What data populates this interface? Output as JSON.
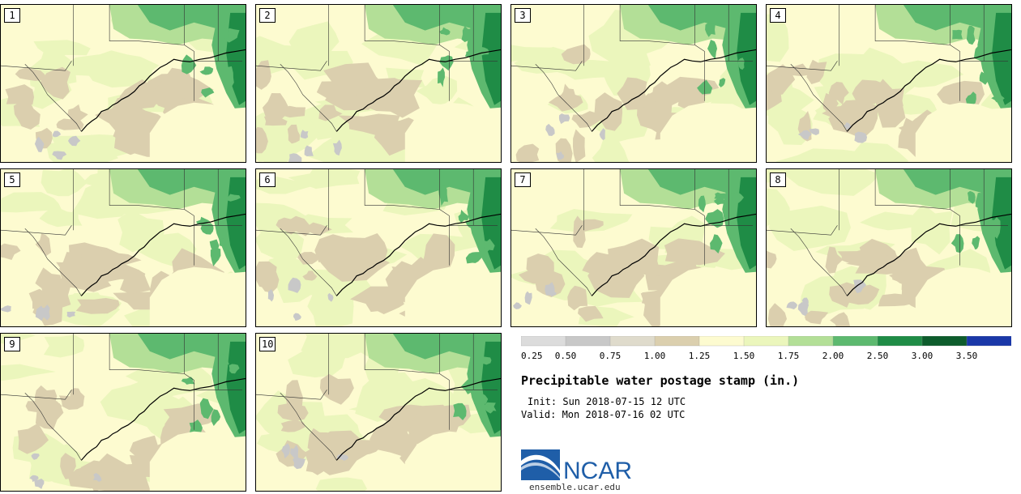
{
  "colors": {
    "base": "#fdfbd0",
    "bins": [
      "#dcdcdc",
      "#c8c8c8",
      "#dfdbcc",
      "#dbcfae",
      "#fdfbd0",
      "#ebf6bc",
      "#b3df97",
      "#5db96f",
      "#1f8c46",
      "#0d5c2c",
      "#1a38a8"
    ],
    "ncar_blue": "#1f5ea8"
  },
  "panels": [
    {
      "label": "1",
      "seed": 11
    },
    {
      "label": "2",
      "seed": 23
    },
    {
      "label": "3",
      "seed": 37
    },
    {
      "label": "4",
      "seed": 41
    },
    {
      "label": "5",
      "seed": 53
    },
    {
      "label": "6",
      "seed": 67
    },
    {
      "label": "7",
      "seed": 71
    },
    {
      "label": "8",
      "seed": 83
    },
    {
      "label": "9",
      "seed": 97
    },
    {
      "label": "10",
      "seed": 109
    }
  ],
  "legend": {
    "ticks": [
      "0.25",
      "0.50",
      "0.75",
      "1.00",
      "1.25",
      "1.50",
      "1.75",
      "2.00",
      "2.50",
      "3.00",
      "3.50"
    ]
  },
  "title": "Precipitable water postage stamp (in.)",
  "init": "Init: Sun 2018-07-15 12 UTC",
  "valid": "Valid: Mon 2018-07-16 02 UTC",
  "logo_text": "NCAR",
  "site": "ensemble.ucar.edu"
}
